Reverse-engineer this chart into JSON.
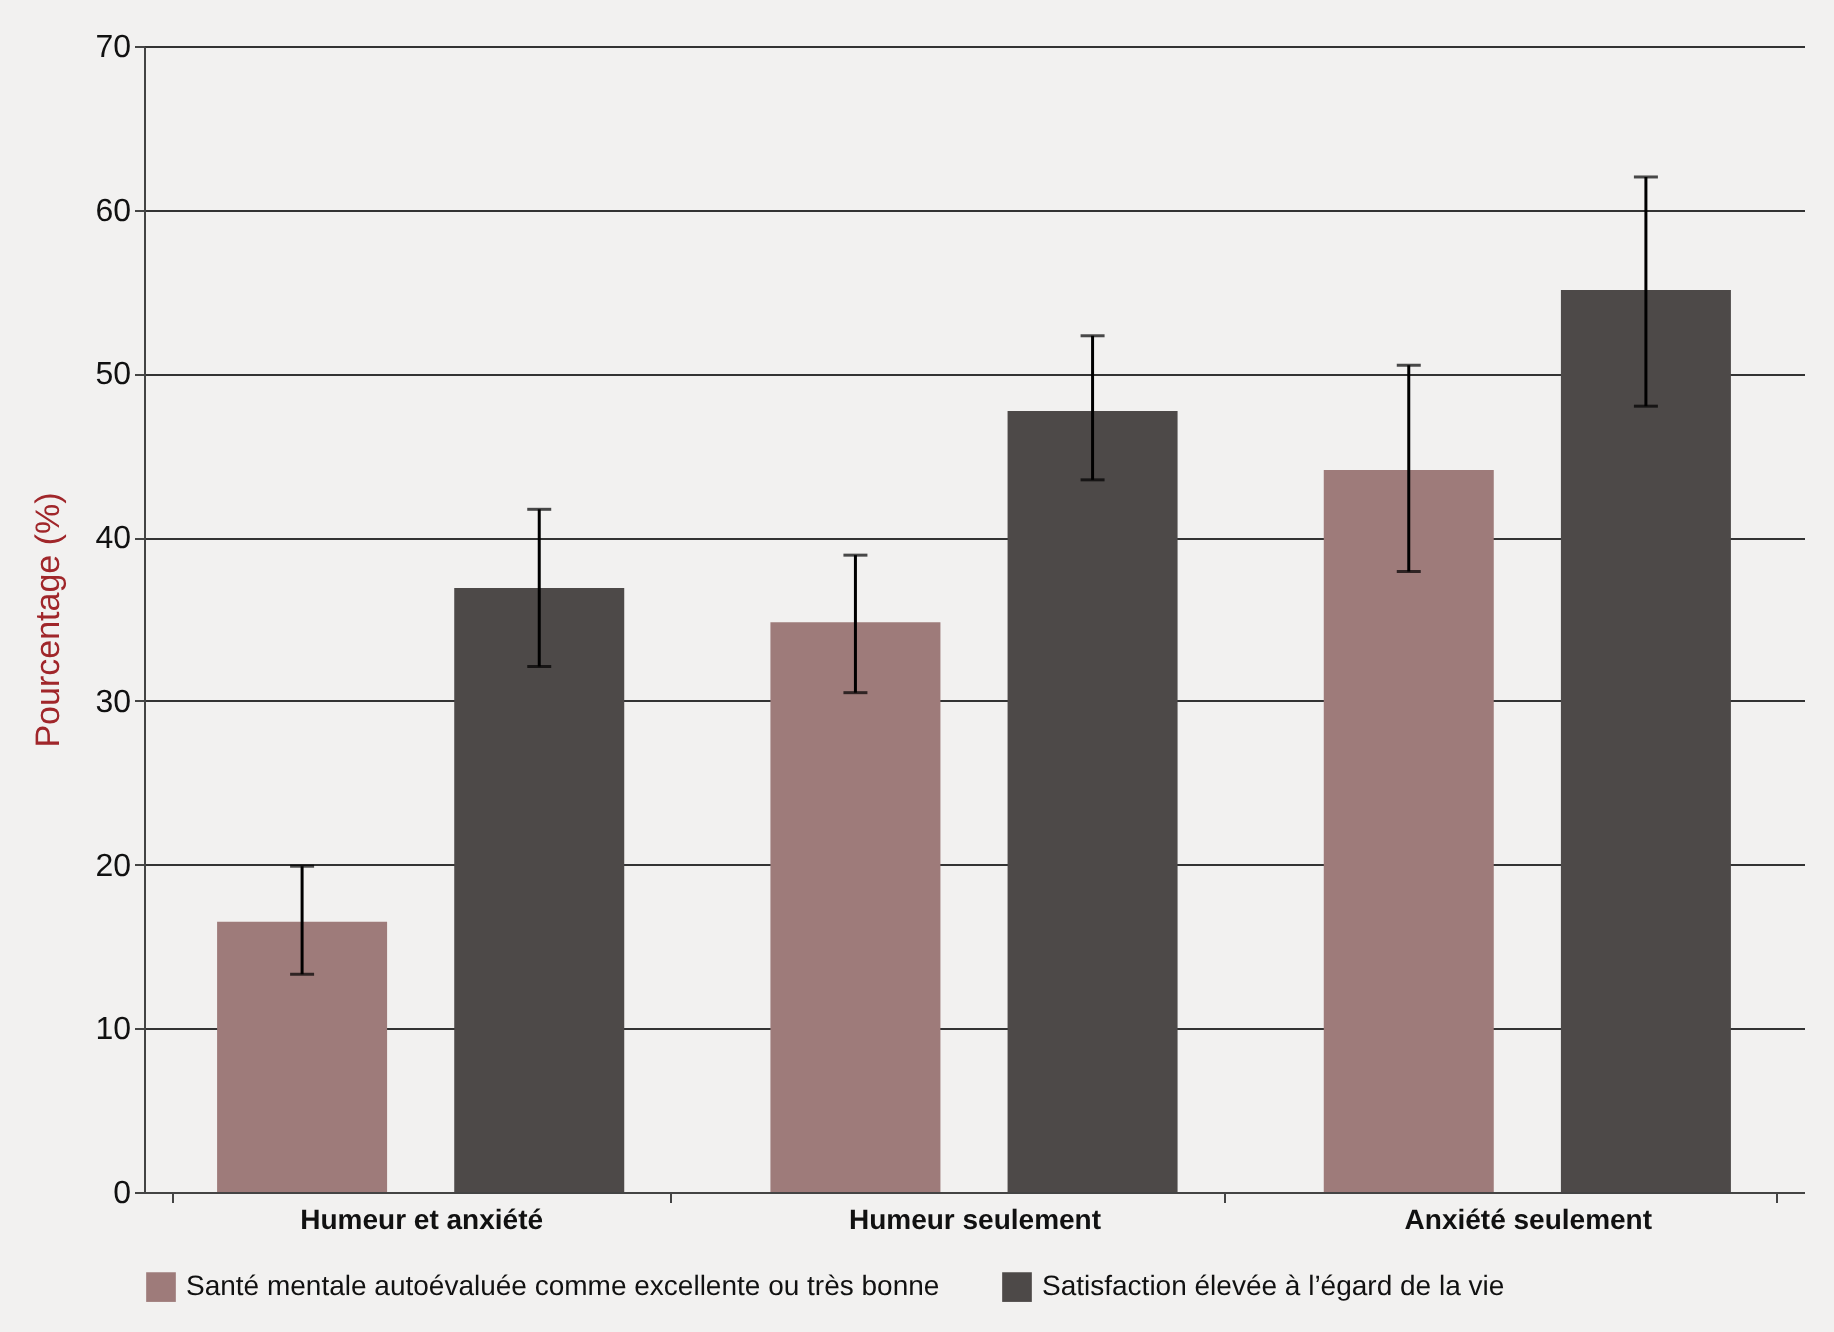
{
  "chart_data": {
    "type": "bar",
    "ylabel": "Pourcentage (%)",
    "categories": [
      "Humeur et anxiété",
      "Humeur seulement",
      "Anxiété seulement"
    ],
    "series": [
      {
        "name": "Santé mentale autoévaluée comme excellente ou très bonne",
        "color": "#9e7b7a",
        "values": [
          16.5,
          34.8,
          44.1
        ],
        "errors": [
          [
            13.3,
            19.9
          ],
          [
            30.5,
            38.9
          ],
          [
            37.9,
            50.5
          ]
        ]
      },
      {
        "name": "Satisfaction élevée à l’égard de la vie",
        "color": "#4d4948",
        "values": [
          36.9,
          47.7,
          55.1
        ],
        "errors": [
          [
            32.1,
            41.7
          ],
          [
            43.5,
            52.3
          ],
          [
            48.0,
            62.0
          ]
        ]
      }
    ],
    "ylim": [
      0,
      70
    ],
    "yticks": [
      0,
      10,
      20,
      30,
      40,
      50,
      60,
      70
    ],
    "grid": "y",
    "legend": "bottom"
  }
}
